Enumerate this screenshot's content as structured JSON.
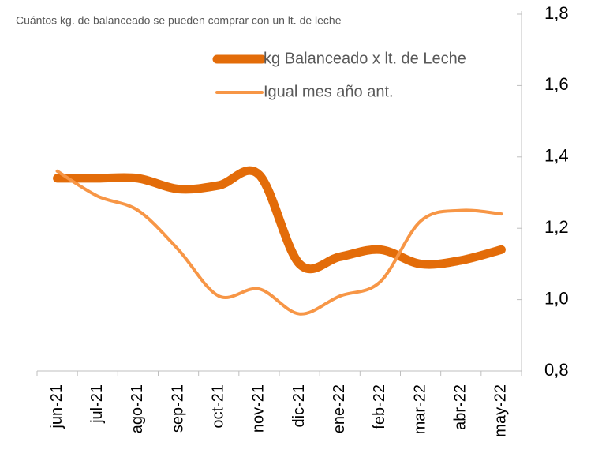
{
  "chart_data": {
    "type": "line",
    "title": "Cuántos kg. de balanceado se pueden comprar con un lt. de leche",
    "categories": [
      "jun-21",
      "jul-21",
      "ago-21",
      "sep-21",
      "oct-21",
      "nov-21",
      "dic-21",
      "ene-22",
      "feb-22",
      "mar-22",
      "abr-22",
      "may-22"
    ],
    "series": [
      {
        "name": "kg Balanceado x lt. de Leche",
        "color": "#e36c09",
        "values": [
          1.34,
          1.34,
          1.34,
          1.31,
          1.32,
          1.35,
          1.1,
          1.12,
          1.14,
          1.1,
          1.11,
          1.14
        ]
      },
      {
        "name": "Igual mes año ant.",
        "color": "#f79646",
        "values": [
          1.36,
          1.29,
          1.25,
          1.14,
          1.01,
          1.03,
          0.96,
          1.01,
          1.05,
          1.22,
          1.25,
          1.24
        ]
      }
    ],
    "ylim": [
      0.8,
      1.8
    ],
    "yticks": [
      {
        "value": 0.8,
        "label": "0,8"
      },
      {
        "value": 1.0,
        "label": "1,0"
      },
      {
        "value": 1.2,
        "label": "1,2"
      },
      {
        "value": 1.4,
        "label": "1,4"
      },
      {
        "value": 1.6,
        "label": "1,6"
      },
      {
        "value": 1.8,
        "label": "1,8"
      }
    ],
    "yaxis_side": "right"
  }
}
